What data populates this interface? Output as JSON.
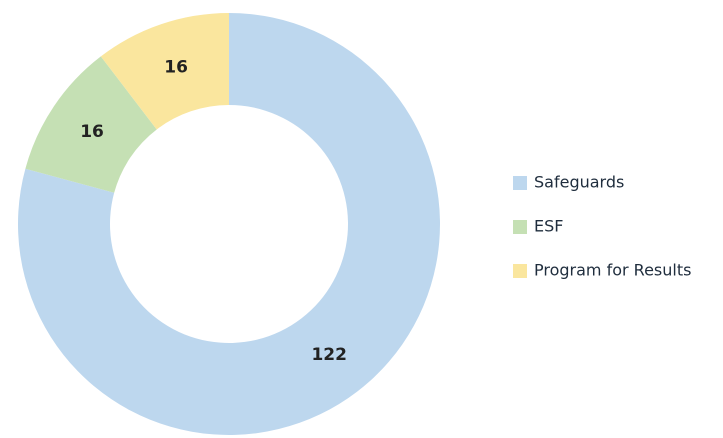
{
  "chart_data": {
    "type": "donut",
    "series": [
      {
        "name": "Safeguards",
        "color": "#bdd7ee",
        "values": [
          122
        ]
      },
      {
        "name": "ESF",
        "color": "#c5e0b4",
        "values": [
          16
        ]
      },
      {
        "name": "Program for Results",
        "color": "#fae69e",
        "values": [
          16
        ]
      }
    ],
    "legend": "right"
  }
}
